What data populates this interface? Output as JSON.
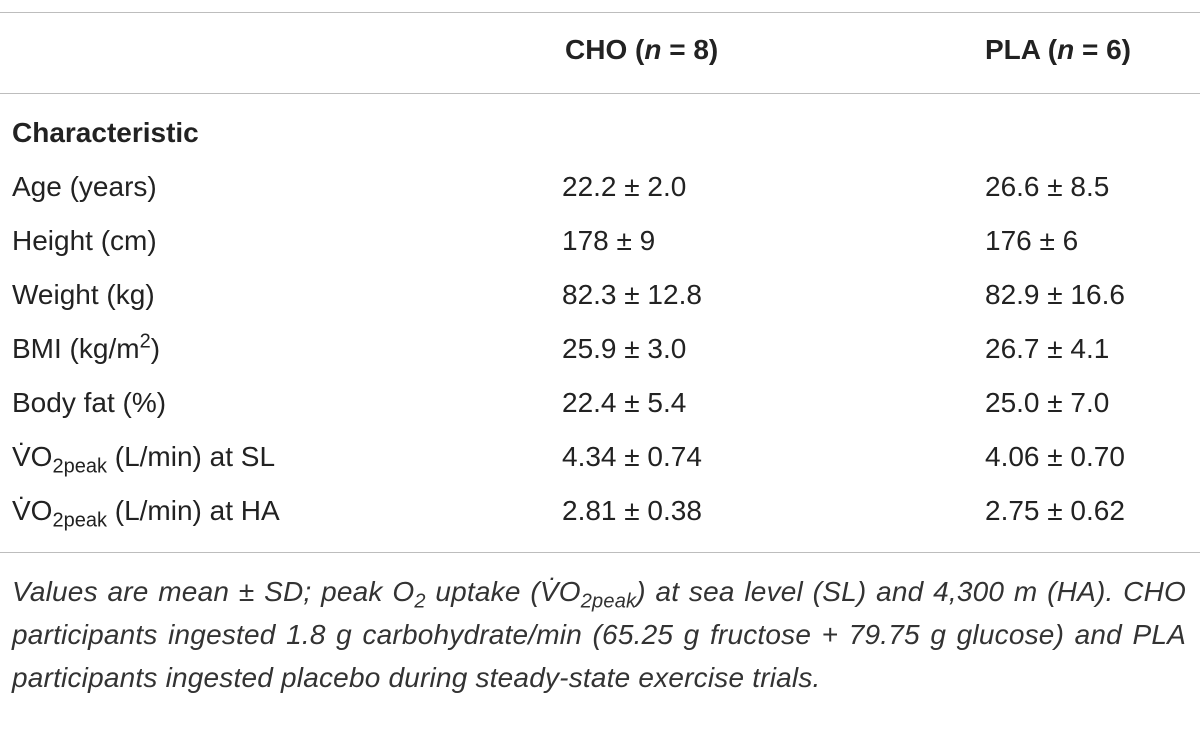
{
  "table": {
    "columns": [
      [
        "CHO (",
        "n",
        " = 8)"
      ],
      [
        "PLA (",
        "n",
        " = 6)"
      ]
    ],
    "section": "Characteristic",
    "rows": [
      {
        "label": {
          "text": "Age (years)"
        },
        "cells": [
          "22.2 ± 2.0",
          "26.6 ± 8.5"
        ]
      },
      {
        "label": {
          "text": "Height (cm)"
        },
        "cells": [
          "178 ± 9",
          "176 ± 6"
        ]
      },
      {
        "label": {
          "text": "Weight (kg)"
        },
        "cells": [
          "82.3 ± 12.8",
          "82.9 ± 16.6"
        ]
      },
      {
        "label": {
          "text": "BMI (kg/m",
          "sup": "2",
          "after": ")"
        },
        "cells": [
          "25.9 ± 3.0",
          "26.7 ± 4.1"
        ]
      },
      {
        "label": {
          "text": "Body fat (%)"
        },
        "cells": [
          "22.4 ± 5.4",
          "25.0 ± 7.0"
        ]
      },
      {
        "label": {
          "text": "V̇O",
          "sub": "2peak",
          "after": " (L/min) at SL"
        },
        "cells": [
          "4.34 ± 0.74",
          "4.06 ± 0.70"
        ]
      },
      {
        "label": {
          "text": "V̇O",
          "sub": "2peak",
          "after": " (L/min) at HA"
        },
        "cells": [
          "2.81 ± 0.38",
          "2.75 ± 0.62"
        ]
      }
    ],
    "footnote": [
      "Values are mean ± SD; peak O",
      "2",
      " uptake (V̇O",
      "2peak",
      ") at sea level (SL) and 4,300 m (HA). CHO participants ingested 1.8 g carbohydrate/min (65.25 g fructose + 79.75 g glucose) and PLA participants ingested placebo during steady-state exercise trials."
    ]
  }
}
